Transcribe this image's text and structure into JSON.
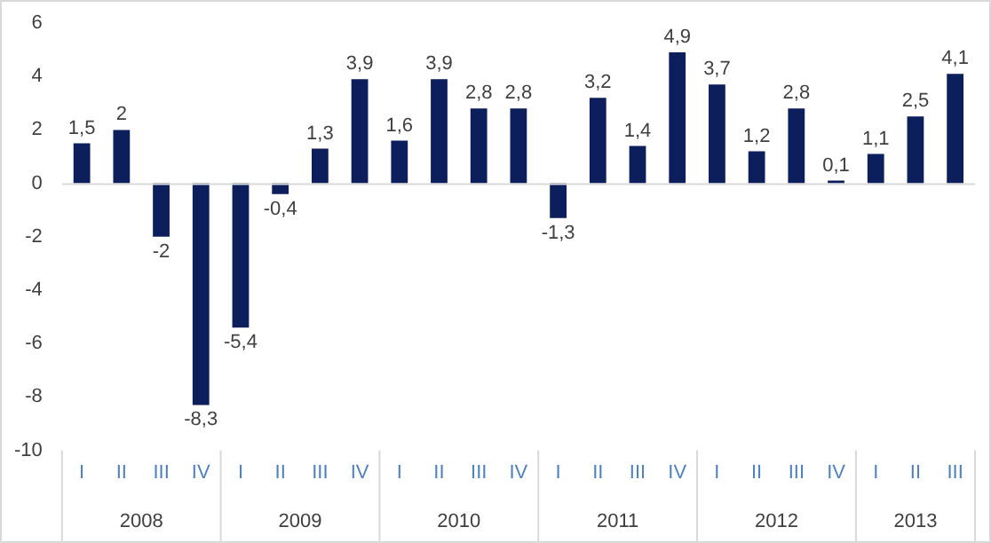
{
  "chart_data": {
    "type": "bar",
    "categories": [
      "I",
      "II",
      "III",
      "IV",
      "I",
      "II",
      "III",
      "IV",
      "I",
      "II",
      "III",
      "IV",
      "I",
      "II",
      "III",
      "IV",
      "I",
      "II",
      "III",
      "IV",
      "I",
      "II",
      "III"
    ],
    "values": [
      1.5,
      2,
      -2,
      -8.3,
      -5.4,
      -0.4,
      1.3,
      3.9,
      1.6,
      3.9,
      2.8,
      2.8,
      -1.3,
      3.2,
      1.4,
      4.9,
      3.7,
      1.2,
      2.8,
      0.1,
      1.1,
      2.5,
      4.1
    ],
    "value_labels": [
      "1,5",
      "2",
      "-2",
      "-8,3",
      "-5,4",
      "-0,4",
      "1,3",
      "3,9",
      "1,6",
      "3,9",
      "2,8",
      "2,8",
      "-1,3",
      "3,2",
      "1,4",
      "4,9",
      "3,7",
      "1,2",
      "2,8",
      "0,1",
      "1,1",
      "2,5",
      "4,1"
    ],
    "color": "#0c1e5b",
    "ylim": [
      -10,
      6
    ],
    "yticks": [
      -10,
      -8,
      -6,
      -4,
      -2,
      0,
      2,
      4,
      6
    ],
    "annotations": [
      "2008",
      "2009",
      "2010",
      "2011",
      "2012",
      "2013"
    ],
    "legend": false
  }
}
